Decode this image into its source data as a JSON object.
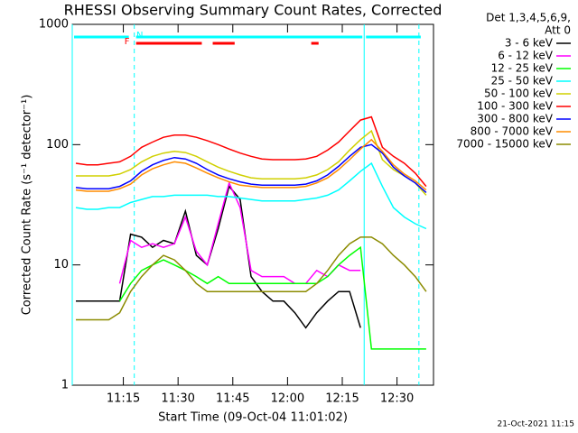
{
  "chart_data": {
    "type": "line",
    "title": "RHESSI Observing Summary Count Rates, Corrected",
    "x_label": "Start Time (09-Oct-04 11:01:02)",
    "y_label": "Corrected Count Rate (s⁻¹ detector⁻¹)",
    "legend_title": [
      "Det 1,3,4,5,6,9,",
      "Att 0"
    ],
    "timestamp": "21-Oct-2021 11:15",
    "log_y": true,
    "ylim": [
      1,
      1000
    ],
    "yticks": [
      1,
      10,
      100,
      1000
    ],
    "xlim": [
      "11:01",
      "12:40"
    ],
    "xticks": [
      "11:15",
      "11:30",
      "11:45",
      "12:00",
      "12:15",
      "12:30"
    ],
    "vlines": [
      {
        "x": "11:01",
        "dashed": false,
        "color": "#00ffff"
      },
      {
        "x": "11:18",
        "dashed": true,
        "color": "#00ffff"
      },
      {
        "x": "12:21",
        "dashed": false,
        "color": "#00ffff"
      },
      {
        "x": "12:36",
        "dashed": true,
        "color": "#00ffff"
      }
    ],
    "flags": [
      {
        "label": "N",
        "color": "#00ffff",
        "spans": [
          [
            "11:01",
            "11:17"
          ],
          [
            "11:18",
            "12:21"
          ],
          [
            "12:21",
            "12:37"
          ]
        ]
      },
      {
        "label": "F",
        "color": "#ff0000",
        "spans": [
          [
            "11:18",
            "11:37"
          ],
          [
            "11:39",
            "11:46"
          ],
          [
            "12:06",
            "12:09"
          ]
        ]
      }
    ],
    "x": [
      "11:02",
      "11:05",
      "11:08",
      "11:11",
      "11:14",
      "11:17",
      "11:20",
      "11:23",
      "11:26",
      "11:29",
      "11:32",
      "11:35",
      "11:38",
      "11:41",
      "11:44",
      "11:47",
      "11:50",
      "11:53",
      "11:56",
      "11:59",
      "12:02",
      "12:05",
      "12:08",
      "12:11",
      "12:14",
      "12:17",
      "12:20",
      "12:23",
      "12:26",
      "12:29",
      "12:32",
      "12:35",
      "12:38"
    ],
    "series": [
      {
        "name": "3 - 6 keV",
        "color": "#000000",
        "values": [
          5,
          5,
          5,
          5,
          5,
          18,
          17,
          14,
          16,
          15,
          28,
          12,
          10,
          20,
          45,
          35,
          8,
          6,
          5,
          5,
          4,
          3,
          4,
          5,
          6,
          6,
          3,
          null,
          null,
          null,
          null,
          null,
          null
        ]
      },
      {
        "name": "6 - 12 keV",
        "color": "#ff00ff",
        "values": [
          null,
          null,
          null,
          null,
          7,
          16,
          14,
          15,
          14,
          15,
          25,
          13,
          10,
          22,
          48,
          30,
          9,
          8,
          8,
          8,
          7,
          7,
          9,
          8,
          10,
          9,
          9,
          null,
          null,
          null,
          null,
          null,
          null
        ]
      },
      {
        "name": "12 - 25 keV",
        "color": "#00ff00",
        "values": [
          null,
          null,
          null,
          null,
          5,
          7,
          9,
          10,
          11,
          10,
          9,
          8,
          7,
          8,
          7,
          7,
          7,
          7,
          7,
          7,
          7,
          7,
          7,
          8,
          10,
          12,
          14,
          2,
          2,
          2,
          2,
          2,
          2
        ]
      },
      {
        "name": "25 - 50 keV",
        "color": "#00ffff",
        "values": [
          30,
          29,
          29,
          30,
          30,
          33,
          35,
          37,
          37,
          38,
          38,
          38,
          38,
          37,
          37,
          36,
          35,
          34,
          34,
          34,
          34,
          35,
          36,
          38,
          42,
          50,
          60,
          70,
          45,
          30,
          25,
          22,
          20
        ]
      },
      {
        "name": "50 - 100 keV",
        "color": "#d0d000",
        "values": [
          55,
          55,
          55,
          55,
          57,
          62,
          72,
          80,
          85,
          88,
          86,
          80,
          72,
          65,
          60,
          56,
          53,
          52,
          52,
          52,
          52,
          53,
          56,
          62,
          72,
          90,
          110,
          130,
          75,
          62,
          55,
          48,
          38
        ]
      },
      {
        "name": "100 - 300 keV",
        "color": "#ff0000",
        "values": [
          70,
          68,
          68,
          70,
          72,
          80,
          95,
          105,
          115,
          120,
          120,
          115,
          108,
          100,
          92,
          85,
          80,
          76,
          75,
          75,
          75,
          76,
          80,
          90,
          105,
          130,
          160,
          170,
          95,
          80,
          70,
          58,
          45
        ]
      },
      {
        "name": "300 - 800 keV",
        "color": "#0000ff",
        "values": [
          44,
          43,
          43,
          43,
          45,
          50,
          60,
          68,
          74,
          78,
          76,
          70,
          62,
          56,
          52,
          49,
          47,
          46,
          46,
          46,
          46,
          47,
          50,
          56,
          66,
          80,
          95,
          100,
          85,
          65,
          55,
          48,
          40
        ]
      },
      {
        "name": "800 - 7000 keV",
        "color": "#ff8c00",
        "values": [
          42,
          41,
          41,
          41,
          43,
          47,
          56,
          63,
          68,
          72,
          70,
          64,
          58,
          53,
          49,
          46,
          45,
          44,
          44,
          44,
          44,
          45,
          48,
          53,
          62,
          75,
          92,
          110,
          88,
          68,
          57,
          50,
          42
        ]
      },
      {
        "name": "7000 - 15000 keV",
        "color": "#8b8b00",
        "values": [
          3.5,
          3.5,
          3.5,
          3.5,
          4,
          6,
          8,
          10,
          12,
          11,
          9,
          7,
          6,
          6,
          6,
          6,
          6,
          6,
          6,
          6,
          6,
          6,
          7,
          9,
          12,
          15,
          17,
          17,
          15,
          12,
          10,
          8,
          6
        ]
      }
    ]
  }
}
